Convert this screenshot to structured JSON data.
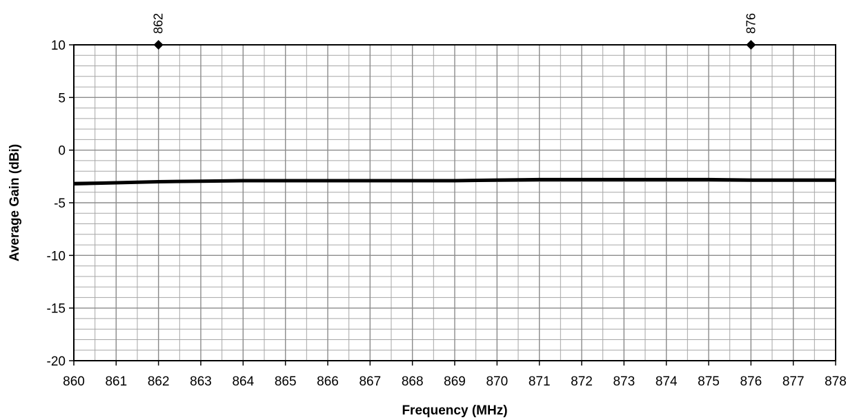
{
  "chart_data": {
    "type": "line",
    "xlabel": "Frequency (MHz)",
    "ylabel": "Average Gain (dBi)",
    "xlim": [
      860,
      878
    ],
    "ylim": [
      -20,
      10
    ],
    "x_ticks": [
      860,
      861,
      862,
      863,
      864,
      865,
      866,
      867,
      868,
      869,
      870,
      871,
      872,
      873,
      874,
      875,
      876,
      877,
      878
    ],
    "y_ticks": [
      10,
      5,
      0,
      -5,
      -10,
      -15,
      -20
    ],
    "x_tick_labels": [
      "860",
      "861",
      "862",
      "863",
      "864",
      "865",
      "866",
      "867",
      "868",
      "869",
      "870",
      "871",
      "872",
      "873",
      "874",
      "875",
      "876",
      "877",
      "878"
    ],
    "y_tick_labels": [
      "10",
      "5",
      "0",
      "-5",
      "-10",
      "-15",
      "-20"
    ],
    "x_minor_step": 0.5,
    "y_minor_step": 1,
    "grid": true,
    "line_color": "#000000",
    "grid_color": "#a6a6a6",
    "series": [
      {
        "x": [
          860,
          861,
          862,
          863,
          864,
          865,
          866,
          867,
          868,
          869,
          870,
          871,
          872,
          873,
          874,
          875,
          876,
          877,
          878
        ],
        "y": [
          -3.2,
          -3.1,
          -3.0,
          -2.95,
          -2.9,
          -2.9,
          -2.9,
          -2.9,
          -2.9,
          -2.9,
          -2.85,
          -2.8,
          -2.8,
          -2.8,
          -2.8,
          -2.8,
          -2.85,
          -2.85,
          -2.85
        ]
      }
    ],
    "markers": [
      {
        "x": 862,
        "y": 10,
        "label": "862"
      },
      {
        "x": 876,
        "y": 10,
        "label": "876"
      }
    ]
  }
}
